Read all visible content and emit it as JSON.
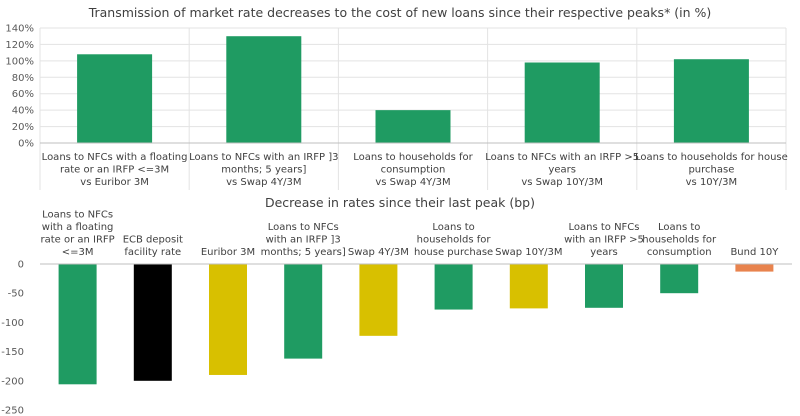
{
  "chart_data": [
    {
      "type": "bar",
      "title": "Transmission of market rate decreases to the cost of new loans since their respective peaks* (in %)",
      "categories": [
        [
          "Loans to NFCs with a floating",
          "rate or an IRFP <=3M",
          "vs Euribor 3M"
        ],
        [
          "Loans to NFCs with an IRFP ]3",
          "months; 5 years]",
          "vs Swap 4Y/3M"
        ],
        [
          "Loans to households for",
          "consumption",
          "vs Swap 4Y/3M"
        ],
        [
          "Loans to NFCs with an IRFP >5",
          "years",
          "vs Swap 10Y/3M"
        ],
        [
          "Loans to households for house",
          "purchase",
          "vs 10Y/3M"
        ]
      ],
      "values": [
        108,
        130,
        40,
        98,
        102
      ],
      "ylim": [
        0,
        140
      ],
      "yticks": [
        0,
        20,
        40,
        60,
        80,
        100,
        120,
        140
      ],
      "tick_suffix": "%",
      "grid": true,
      "colors": [
        "#1f9b62",
        "#1f9b62",
        "#1f9b62",
        "#1f9b62",
        "#1f9b62"
      ]
    },
    {
      "type": "bar",
      "title": "Decrease in rates since their last peak (bp)",
      "categories": [
        [
          "Loans to NFCs",
          "with a floating",
          "rate or an IRFP",
          "<=3M"
        ],
        [
          "ECB deposit",
          "facility rate"
        ],
        [
          "Euribor 3M"
        ],
        [
          "Loans to NFCs",
          "with an IRFP ]3",
          "months; 5 years]"
        ],
        [
          "Swap 4Y/3M"
        ],
        [
          "Loans to",
          "households for",
          "house purchase"
        ],
        [
          "Swap 10Y/3M"
        ],
        [
          "Loans to NFCs",
          "with an IRFP >5",
          "years"
        ],
        [
          "Loans to",
          "households for",
          "consumption"
        ],
        [
          "Bund 10Y"
        ]
      ],
      "values": [
        -206,
        -200,
        -190,
        -162,
        -123,
        -78,
        -76,
        -75,
        -50,
        -13
      ],
      "ylim": [
        -250,
        0
      ],
      "yticks": [
        0,
        -50,
        -100,
        -150,
        -200,
        -250
      ],
      "tick_suffix": "",
      "grid": false,
      "colors": [
        "#1f9b62",
        "#000000",
        "#d8c000",
        "#1f9b62",
        "#d8c000",
        "#1f9b62",
        "#d8c000",
        "#1f9b62",
        "#1f9b62",
        "#e8834e"
      ]
    }
  ]
}
